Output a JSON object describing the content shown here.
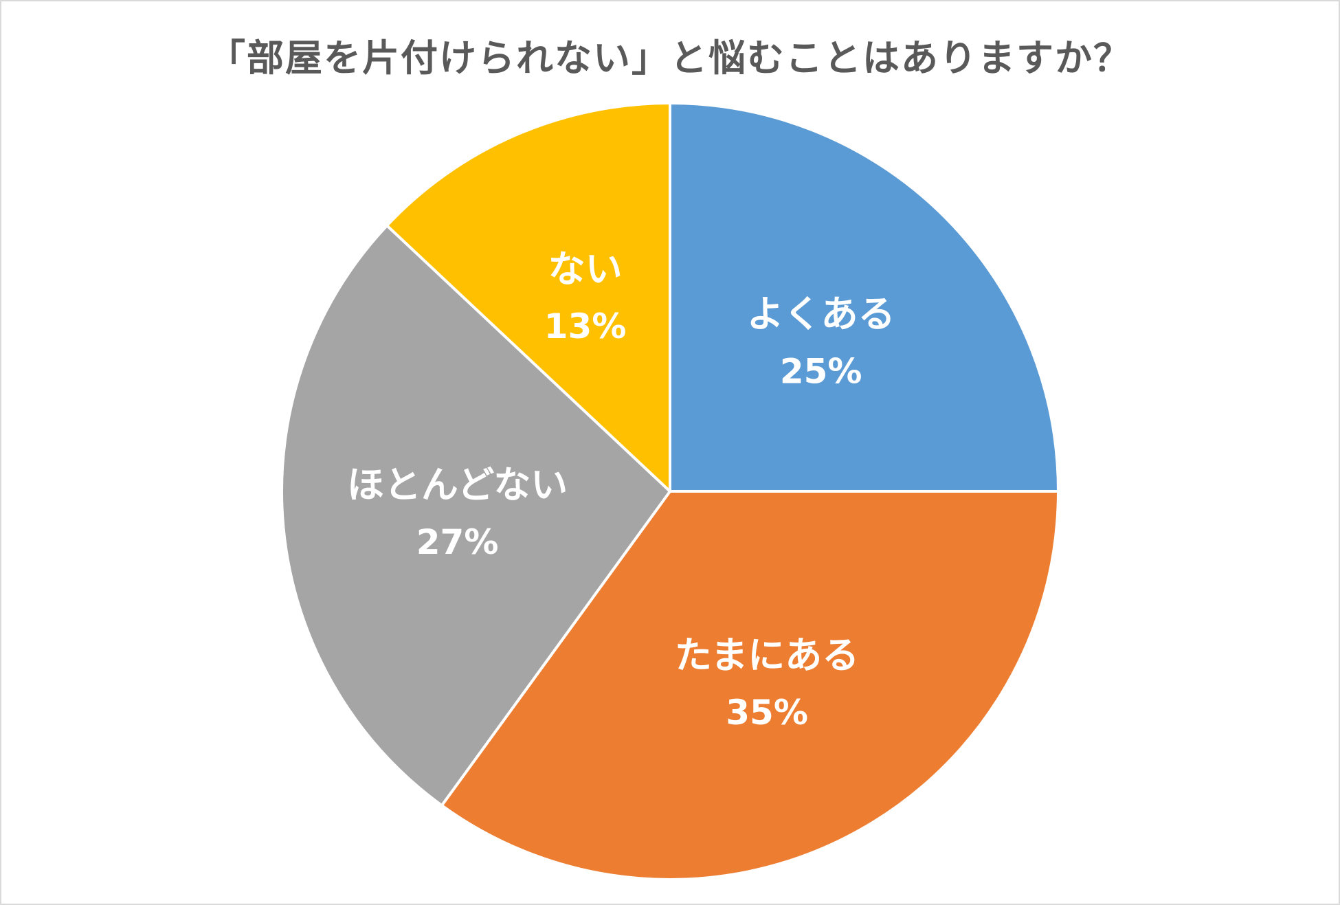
{
  "chart_data": {
    "type": "pie",
    "title": "「部屋を片付けられない」と悩むことはありますか？",
    "slices": [
      {
        "label": "よくある",
        "percent_label": "25%",
        "value": 25,
        "color": "#5b9bd5"
      },
      {
        "label": "たまにある",
        "percent_label": "35%",
        "value": 35,
        "color": "#ed7d31"
      },
      {
        "label": "ほとんどない",
        "percent_label": "27%",
        "value": 27,
        "color": "#a5a5a5"
      },
      {
        "label": "ない",
        "percent_label": "13%",
        "value": 13,
        "color": "#ffc000"
      }
    ],
    "start_angle": "12 o'clock",
    "direction": "clockwise",
    "legend": "none",
    "data_labels": "inside slices, category name and percentage"
  }
}
